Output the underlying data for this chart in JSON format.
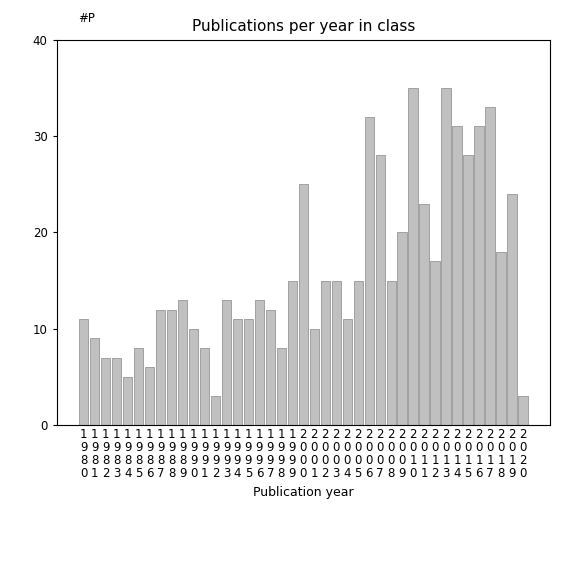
{
  "title": "Publications per year in class",
  "xlabel": "Publication year",
  "ylabel": "#P",
  "years": [
    1980,
    1981,
    1982,
    1983,
    1984,
    1985,
    1986,
    1987,
    1988,
    1989,
    1990,
    1991,
    1992,
    1993,
    1994,
    1995,
    1996,
    1997,
    1998,
    1999,
    2000,
    2001,
    2002,
    2003,
    2004,
    2005,
    2006,
    2007,
    2008,
    2009,
    2010,
    2011,
    2012,
    2013,
    2014,
    2015,
    2016,
    2017,
    2018,
    2019,
    2020
  ],
  "values": [
    11,
    9,
    7,
    7,
    5,
    8,
    6,
    12,
    12,
    13,
    10,
    8,
    3,
    13,
    11,
    11,
    13,
    12,
    8,
    15,
    25,
    10,
    15,
    15,
    11,
    15,
    32,
    28,
    15,
    20,
    35,
    23,
    17,
    35,
    31,
    28,
    31,
    33,
    18,
    24,
    3
  ],
  "bar_color": "#c0c0c0",
  "bar_edgecolor": "#888888",
  "ylim": [
    0,
    40
  ],
  "yticks": [
    0,
    10,
    20,
    30,
    40
  ],
  "background_color": "#ffffff",
  "title_fontsize": 11,
  "label_fontsize": 9,
  "tick_fontsize": 8.5
}
